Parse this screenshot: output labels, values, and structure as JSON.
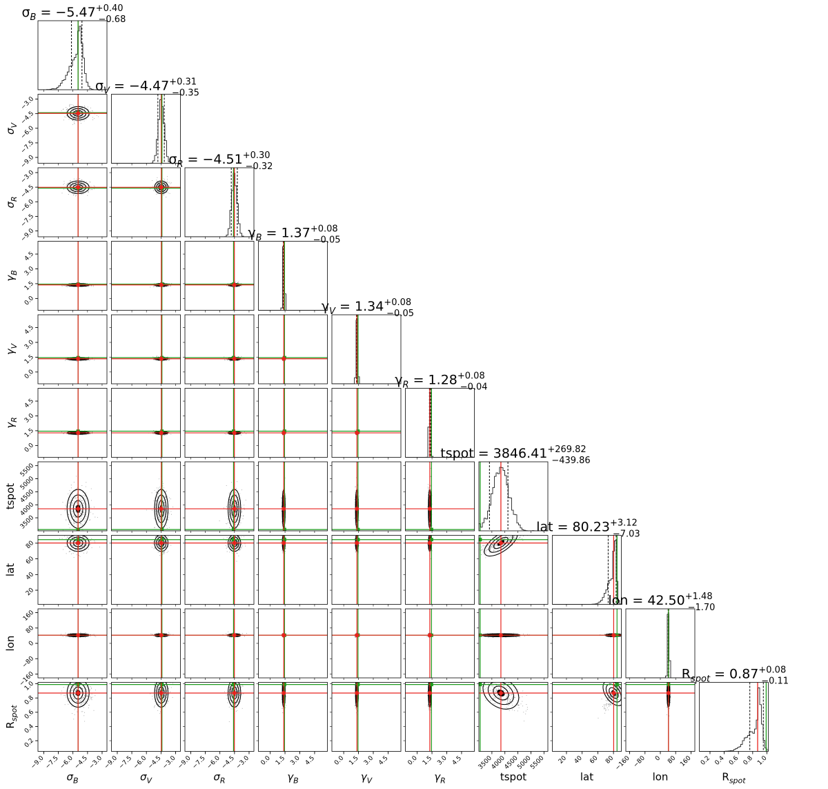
{
  "chart_data": {
    "type": "corner",
    "line_colors": {
      "truth": "#1e9b1e",
      "median": "#e8231d",
      "quantile": "#000000",
      "hist": "#222222"
    },
    "parameters": [
      {
        "key": "sigma_B",
        "label": "σ",
        "sub": "B",
        "title": "σ_B = −5.47 +0.40 −0.68",
        "t_name": "σ",
        "t_sub": "B",
        "t_val": " = −5.47",
        "t_plus": "+0.40",
        "t_minus": "−0.68",
        "range": [
          -9.6,
          -2.5
        ],
        "ticks": [
          -9.0,
          -7.5,
          -6.0,
          -4.5,
          -3.0
        ],
        "tick_labels": [
          "−9.0",
          "−7.5",
          "−6.0",
          "−4.5",
          "−3.0"
        ],
        "median": -5.47,
        "q16": -6.15,
        "q84": -5.07,
        "truth": -5.47,
        "hist_shape": "skew_left"
      },
      {
        "key": "sigma_V",
        "label": "σ",
        "sub": "V",
        "title": "σ_V = −4.47 +0.31 −0.35",
        "t_name": "σ",
        "t_sub": "V",
        "t_val": " = −4.47",
        "t_plus": "+0.31",
        "t_minus": "−0.35",
        "range": [
          -9.6,
          -2.5
        ],
        "ticks": [
          -9.0,
          -7.5,
          -6.0,
          -4.5,
          -3.0
        ],
        "tick_labels": [
          "−9.0",
          "−7.5",
          "−6.0",
          "−4.5",
          "−3.0"
        ],
        "median": -4.47,
        "q16": -4.82,
        "q84": -4.16,
        "truth": -4.4,
        "hist_shape": "narrow"
      },
      {
        "key": "sigma_R",
        "label": "σ",
        "sub": "R",
        "title": "σ_R = −4.51 +0.30 −0.32",
        "t_name": "σ",
        "t_sub": "R",
        "t_val": " = −4.51",
        "t_plus": "+0.30",
        "t_minus": "−0.32",
        "range": [
          -9.6,
          -2.5
        ],
        "ticks": [
          -9.0,
          -7.5,
          -6.0,
          -4.5,
          -3.0
        ],
        "tick_labels": [
          "−9.0",
          "−7.5",
          "−6.0",
          "−4.5",
          "−3.0"
        ],
        "median": -4.51,
        "q16": -4.83,
        "q84": -4.21,
        "truth": -4.6,
        "hist_shape": "narrow"
      },
      {
        "key": "gamma_B",
        "label": "γ",
        "sub": "B",
        "title": "γ_B = 1.37 +0.08 −0.05",
        "t_name": "γ",
        "t_sub": "B",
        "t_val": " = 1.37",
        "t_plus": "+0.08",
        "t_minus": "−0.05",
        "range": [
          -1.2,
          5.8
        ],
        "ticks": [
          0.0,
          1.5,
          3.0,
          4.5
        ],
        "tick_labels": [
          "0.0",
          "1.5",
          "3.0",
          "4.5"
        ],
        "median": 1.37,
        "q16": 1.32,
        "q84": 1.45,
        "truth": 1.45,
        "hist_shape": "spike"
      },
      {
        "key": "gamma_V",
        "label": "γ",
        "sub": "V",
        "title": "γ_V = 1.34 +0.08 −0.05",
        "t_name": "γ",
        "t_sub": "V",
        "t_val": " = 1.34",
        "t_plus": "+0.08",
        "t_minus": "−0.05",
        "range": [
          -1.2,
          5.8
        ],
        "ticks": [
          0.0,
          1.5,
          3.0,
          4.5
        ],
        "tick_labels": [
          "0.0",
          "1.5",
          "3.0",
          "4.5"
        ],
        "median": 1.34,
        "q16": 1.29,
        "q84": 1.42,
        "truth": 1.45,
        "hist_shape": "spike"
      },
      {
        "key": "gamma_R",
        "label": "γ",
        "sub": "R",
        "title": "γ_R = 1.28 +0.08 −0.04",
        "t_name": "γ",
        "t_sub": "R",
        "t_val": " = 1.28",
        "t_plus": "+0.08",
        "t_minus": "−0.04",
        "range": [
          -1.2,
          5.8
        ],
        "ticks": [
          0.0,
          1.5,
          3.0,
          4.5
        ],
        "tick_labels": [
          "0.0",
          "1.5",
          "3.0",
          "4.5"
        ],
        "median": 1.28,
        "q16": 1.24,
        "q84": 1.36,
        "truth": 1.45,
        "hist_shape": "spike"
      },
      {
        "key": "tspot",
        "label": "tspot",
        "sub": "",
        "title": "tspot = 3846.41 +269.82 −439.86",
        "t_name": "tspot",
        "t_sub": "",
        "t_val": " = 3846.41",
        "t_plus": "+269.82",
        "t_minus": "−439.86",
        "range": [
          3000,
          5650
        ],
        "ticks": [
          3500,
          4000,
          4500,
          5000,
          5500
        ],
        "tick_labels": [
          "3500",
          "4000",
          "4500",
          "5000",
          "5500"
        ],
        "median": 3846.41,
        "q16": 3406.55,
        "q84": 4116.23,
        "truth": 3050,
        "hist_shape": "broad"
      },
      {
        "key": "lat",
        "label": "lat",
        "sub": "",
        "title": "lat = 80.23 +3.12 −7.03",
        "t_name": "lat",
        "t_sub": "",
        "t_val": " = 80.23",
        "t_plus": "+3.12",
        "t_minus": "−7.03",
        "range": [
          2,
          90
        ],
        "ticks": [
          20,
          40,
          60,
          80
        ],
        "tick_labels": [
          "20",
          "40",
          "60",
          "80"
        ],
        "median": 80.23,
        "q16": 73.2,
        "q84": 83.35,
        "truth": 84.5,
        "hist_shape": "edge_right"
      },
      {
        "key": "lon",
        "label": "lon",
        "sub": "",
        "title": "lon = 42.50 +1.48 −1.70",
        "t_name": "lon",
        "t_sub": "",
        "t_val": " = 42.50",
        "t_plus": "+1.48",
        "t_minus": "−1.70",
        "range": [
          -180,
          180
        ],
        "ticks": [
          -160,
          -80,
          0,
          80,
          160
        ],
        "tick_labels": [
          "−160",
          "−80",
          "0",
          "80",
          "160"
        ],
        "median": 42.5,
        "q16": 40.8,
        "q84": 43.98,
        "truth": 42.5,
        "hist_shape": "spike"
      },
      {
        "key": "R_spot",
        "label": "R",
        "sub": "spot",
        "title": "R_spot = 0.87 +0.08 −0.11",
        "t_name": "R",
        "t_sub": "spot",
        "t_val": " = 0.87",
        "t_plus": "+0.08",
        "t_minus": "−0.11",
        "range": [
          0.05,
          1.02
        ],
        "ticks": [
          0.2,
          0.4,
          0.6,
          0.8,
          1.0
        ],
        "tick_labels": [
          "0.2",
          "0.4",
          "0.6",
          "0.8",
          "1.0"
        ],
        "median": 0.87,
        "q16": 0.76,
        "q84": 0.95,
        "truth": 0.99,
        "hist_shape": "edge_right"
      }
    ],
    "y_ticks_override": {
      "sigma_V": {
        "ticks": [
          -9.0,
          -7.5,
          -6.0,
          -4.5,
          -3.0
        ],
        "labels": [
          "−9.0",
          "−7.5",
          "−6.0",
          "−4.5",
          "−3.0"
        ]
      },
      "sigma_R": {
        "ticks": [
          -9.0,
          -7.5,
          -6.0,
          -4.5,
          -3.0
        ],
        "labels": [
          "−9.0",
          "−7.5",
          "−6.0",
          "−4.5",
          "−3.0"
        ]
      },
      "gamma_B": {
        "ticks": [
          0.0,
          1.5,
          3.0,
          4.5
        ],
        "labels": [
          "0.0",
          "1.5",
          "3.0",
          "4.5"
        ]
      },
      "gamma_V": {
        "ticks": [
          0.0,
          1.5,
          3.0,
          4.5
        ],
        "labels": [
          "0.0",
          "1.5",
          "3.0",
          "4.5"
        ]
      },
      "gamma_R": {
        "ticks": [
          0.0,
          1.5,
          3.0,
          4.5
        ],
        "labels": [
          "0.0",
          "1.5",
          "3.0",
          "4.5"
        ]
      },
      "tspot": {
        "ticks": [
          3500,
          4000,
          4500,
          5000,
          5500
        ],
        "labels": [
          "3500",
          "4000",
          "4500",
          "5000",
          "5500"
        ]
      },
      "lat": {
        "ticks": [
          20,
          40,
          60,
          80
        ],
        "labels": [
          "20",
          "40",
          "60",
          "80"
        ]
      },
      "lon": {
        "ticks": [
          -160,
          -80,
          0,
          80,
          160
        ],
        "labels": [
          "−160",
          "−80",
          "0",
          "80",
          "160"
        ]
      },
      "R_spot": {
        "ticks": [
          0.2,
          0.4,
          0.6,
          0.8,
          1.0
        ],
        "labels": [
          "0.2",
          "0.4",
          "0.6",
          "0.8",
          "1.0"
        ]
      }
    }
  }
}
